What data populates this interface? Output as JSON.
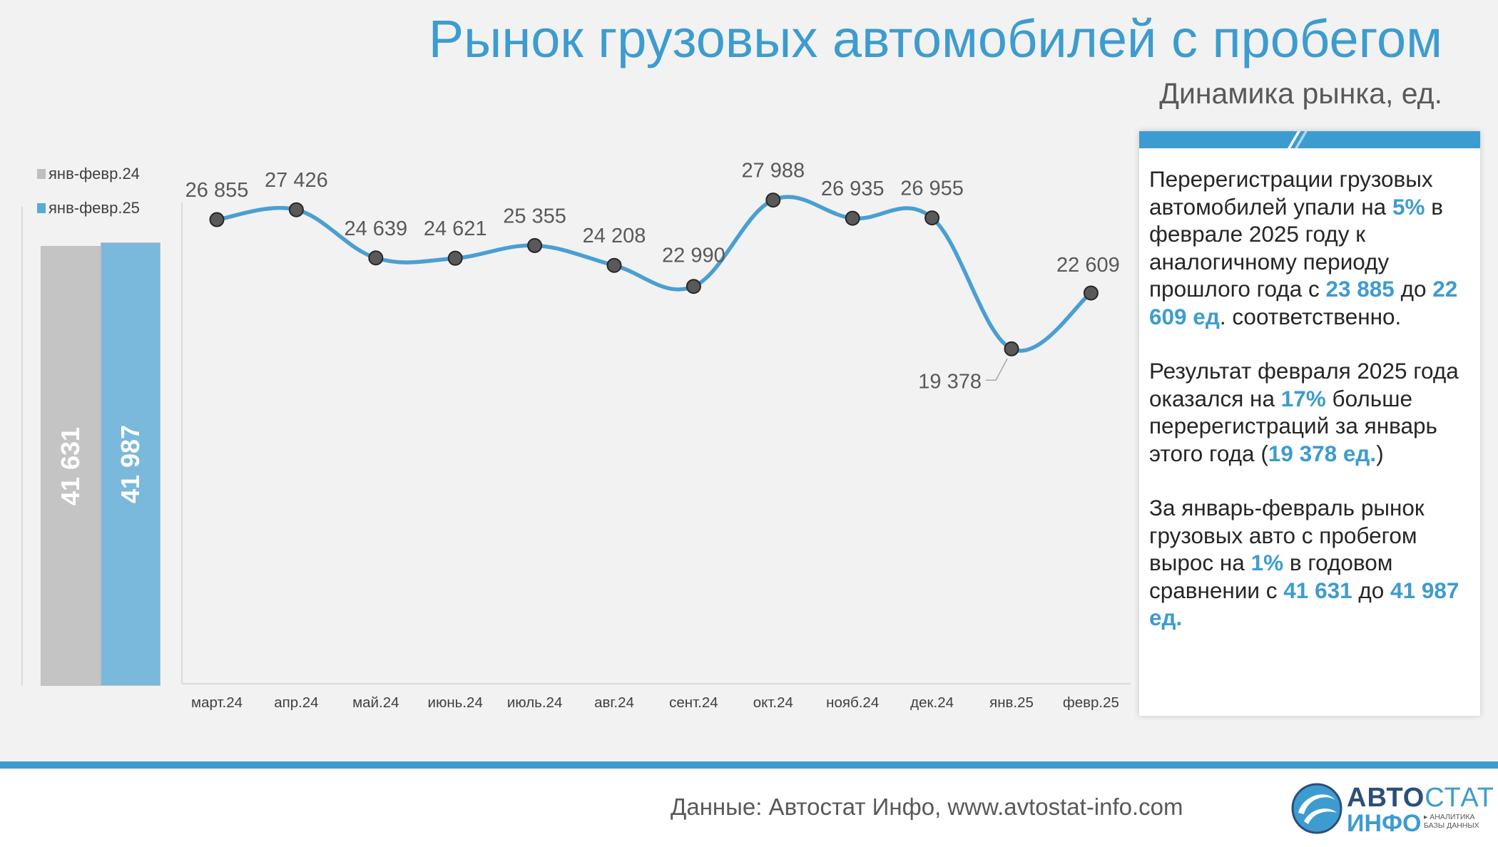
{
  "title": "Рынок грузовых автомобилей с пробегом",
  "subtitle": "Динамика рынка, ед.",
  "colors": {
    "accent": "#3d9ccf",
    "grey_bar": "#c4c4c4",
    "blue_bar": "#7ab8dc",
    "marker": "#595959",
    "line": "#4a9fd2"
  },
  "legend": [
    {
      "label": "янв-февр.24",
      "color": "#bfbfbf"
    },
    {
      "label": "янв-февр.25",
      "color": "#5aaad8"
    }
  ],
  "chart_data": [
    {
      "type": "bar",
      "categories": [
        "янв-февр.24",
        "янв-февр.25"
      ],
      "values": [
        41631,
        41987
      ],
      "value_labels": [
        "41 631",
        "41 987"
      ]
    },
    {
      "type": "line",
      "categories": [
        "март.24",
        "апр.24",
        "май.24",
        "июнь.24",
        "июль.24",
        "авг.24",
        "сент.24",
        "окт.24",
        "нояб.24",
        "дек.24",
        "янв.25",
        "февр.25"
      ],
      "values": [
        26855,
        27426,
        24639,
        24621,
        25355,
        24208,
        22990,
        27988,
        26935,
        26955,
        19378,
        22609
      ],
      "value_labels": [
        "26 855",
        "27 426",
        "24 639",
        "24 621",
        "25 355",
        "24 208",
        "22 990",
        "27 988",
        "26 935",
        "26 955",
        "19 378",
        "22 609"
      ],
      "ylim": [
        0,
        30000
      ]
    }
  ],
  "textbox": {
    "p1": {
      "a": "Перерегистрации грузовых автомобилей упали на ",
      "b": "5%",
      "c": " в феврале 2025 году к аналогичному периоду прошлого года с ",
      "d": "23 885",
      "e": " до ",
      "f": "22 609 ед",
      "g": ". соответственно."
    },
    "p2": {
      "a": "Результат февраля 2025 года оказался на ",
      "b": "17%",
      "c": " больше перерегистраций за январь этого года (",
      "d": "19 378 ед.",
      "e": ")"
    },
    "p3": {
      "a": "За январь-февраль рынок грузовых авто с пробегом вырос на ",
      "b": "1%",
      "c": " в годовом сравнении с ",
      "d": "41 631",
      "e": " до ",
      "f": "41 987 ед."
    }
  },
  "footer": {
    "source": "Данные: Автостат Инфо, www.avtostat-info.com"
  },
  "logo": {
    "top_bold": "АВТО",
    "top_light": "СТАТ",
    "bottom": "ИНФО",
    "tag1": "▸ АНАЛИТИКА",
    "tag2": "БАЗЫ ДАННЫХ"
  }
}
